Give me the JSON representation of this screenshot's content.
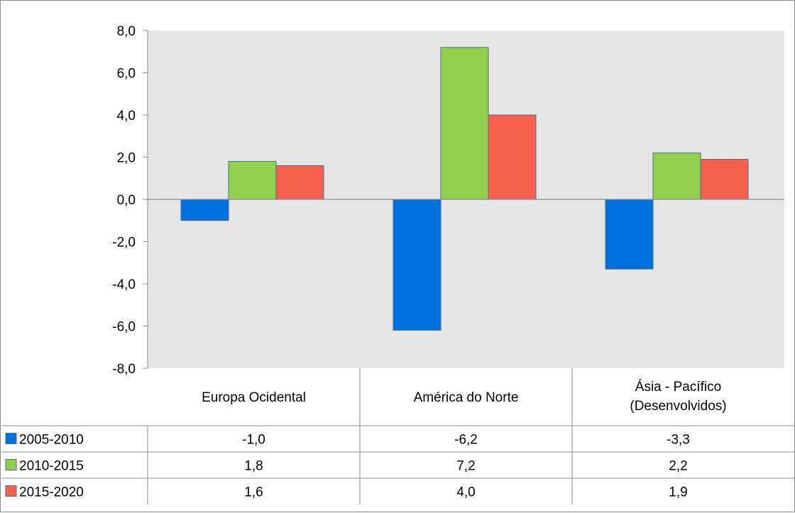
{
  "chart_data": {
    "type": "bar",
    "categories": [
      [
        "Europa Ocidental"
      ],
      [
        "América do Norte"
      ],
      [
        "Ásia - Pacífico",
        "(Desenvolvidos)"
      ]
    ],
    "series": [
      {
        "name": "2005-2010",
        "values": [
          -1.0,
          -6.2,
          -3.3
        ],
        "labels": [
          "-1,0",
          "-6,2",
          "-3,3"
        ],
        "color": "#0070DD"
      },
      {
        "name": "2010-2015",
        "values": [
          1.8,
          7.2,
          2.2
        ],
        "labels": [
          "1,8",
          "7,2",
          "2,2"
        ],
        "color": "#92D050"
      },
      {
        "name": "2015-2020",
        "values": [
          1.6,
          4.0,
          1.9
        ],
        "labels": [
          "1,6",
          "4,0",
          "1,9"
        ],
        "color": "#F8604E"
      }
    ],
    "ylim": [
      -8,
      8
    ],
    "yticks": [
      8,
      6,
      4,
      2,
      0,
      -2,
      -4,
      -6,
      -8
    ],
    "ytick_labels": [
      "8,0",
      "6,0",
      "4,0",
      "2,0",
      "0,0",
      "-2,0",
      "-4,0",
      "-6,0",
      "-8,0"
    ],
    "grid": false,
    "plot_background": "#E6E6E6",
    "legend": "data-table-left",
    "data_table": true
  }
}
